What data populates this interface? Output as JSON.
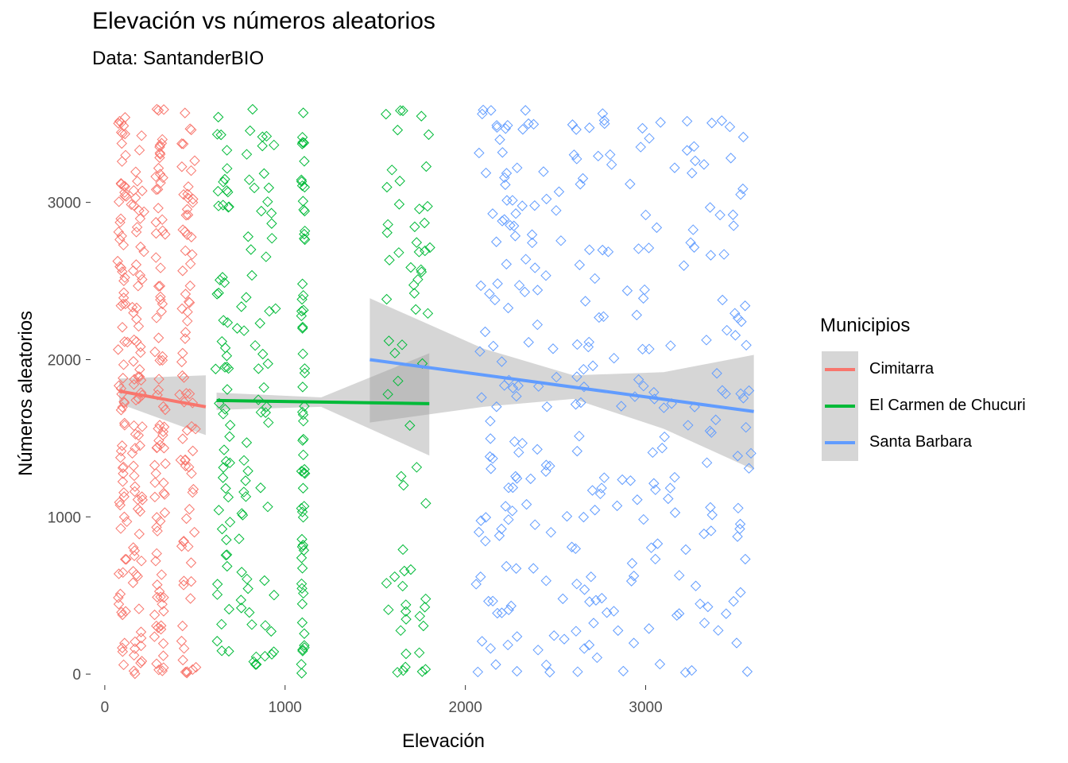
{
  "chart_data": {
    "type": "scatter",
    "title": "Elevación vs números aleatorios",
    "subtitle": "Data: SantanderBIO",
    "xlabel": "Elevación",
    "ylabel": "Números aleatorios",
    "xlim": [
      -70,
      3650
    ],
    "ylim": [
      -60,
      3630
    ],
    "xticks": [
      0,
      1000,
      2000,
      3000
    ],
    "yticks": [
      0,
      1000,
      2000,
      3000
    ],
    "grid": false,
    "legend": {
      "title": "Municipios",
      "placement": "right"
    },
    "point_marker": "open-diamond",
    "series": [
      {
        "name": "Cimitarra",
        "color": "#F8766D",
        "x_clusters": [
          [
            80,
            120
          ],
          [
            150,
            210
          ],
          [
            280,
            330
          ],
          [
            420,
            500
          ]
        ],
        "n_points": 320,
        "trend": {
          "x": [
            80,
            560
          ],
          "y": [
            1800,
            1700
          ]
        },
        "ci_band": {
          "x": [
            80,
            560
          ],
          "lower": [
            1720,
            1520
          ],
          "upper": [
            1880,
            1900
          ]
        }
      },
      {
        "name": "El Carmen de Chucuri",
        "color": "#00BA38",
        "x_clusters": [
          [
            620,
            700
          ],
          [
            740,
            940
          ],
          [
            1100,
            1100
          ],
          [
            1550,
            1800
          ]
        ],
        "n_points": 250,
        "trend": {
          "x": [
            620,
            1800
          ],
          "y": [
            1740,
            1720
          ]
        },
        "ci_band": {
          "x": [
            620,
            1200,
            1800
          ],
          "lower": [
            1680,
            1700,
            1390
          ],
          "upper": [
            1790,
            1760,
            2040
          ]
        }
      },
      {
        "name": "Santa Barbara",
        "color": "#619CFF",
        "x_clusters": [
          [
            2050,
            2300
          ],
          [
            2300,
            2700
          ],
          [
            2700,
            3100
          ],
          [
            3100,
            3600
          ]
        ],
        "n_points": 300,
        "trend": {
          "x": [
            1470,
            3600
          ],
          "y": [
            2000,
            1670
          ]
        },
        "ci_band": {
          "x": [
            1470,
            2100,
            2600,
            3100,
            3600
          ],
          "lower": [
            1600,
            1700,
            1750,
            1560,
            1300
          ],
          "upper": [
            2390,
            2070,
            1900,
            1920,
            2030
          ]
        }
      }
    ]
  }
}
